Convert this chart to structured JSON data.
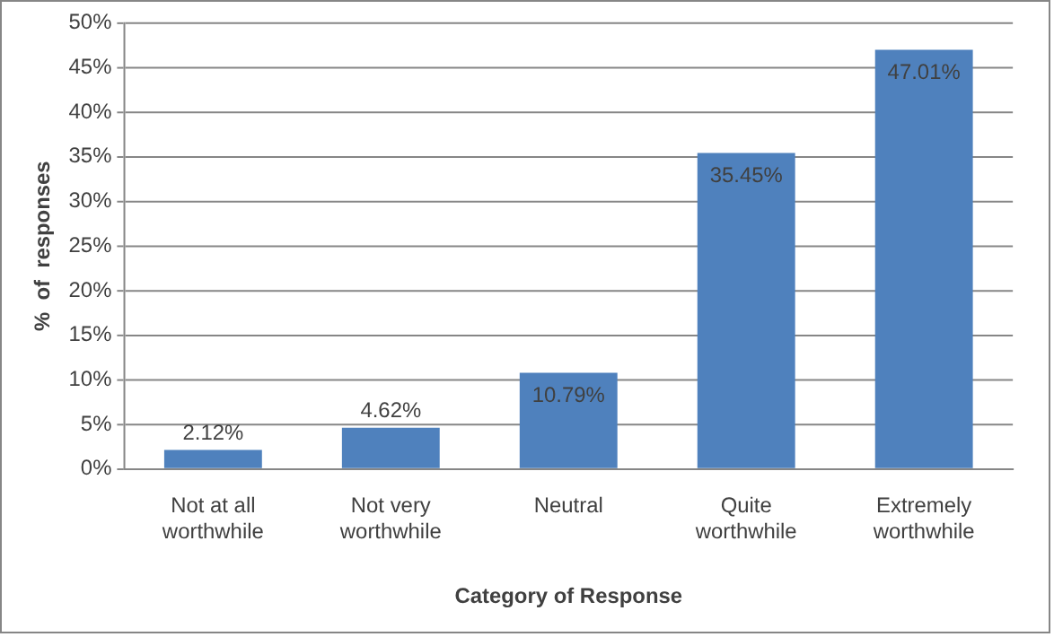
{
  "chart_data": {
    "type": "bar",
    "xlabel": "Category of Response",
    "ylabel": "%  of  responses",
    "categories": [
      "Not at all worthwhile",
      "Not very worthwhile",
      "Neutral",
      "Quite worthwhile",
      "Extremely worthwhile"
    ],
    "values": [
      2.12,
      4.62,
      10.79,
      35.45,
      47.01
    ],
    "value_labels": [
      "2.12%",
      "4.62%",
      "10.79%",
      "35.45%",
      "47.01%"
    ],
    "color": "#4f81bd",
    "ylim": [
      0,
      50
    ],
    "yticks": [
      {
        "value": 0,
        "label": "0%"
      },
      {
        "value": 5,
        "label": "5%"
      },
      {
        "value": 10,
        "label": "10%"
      },
      {
        "value": 15,
        "label": "15%"
      },
      {
        "value": 20,
        "label": "20%"
      },
      {
        "value": 25,
        "label": "25%"
      },
      {
        "value": 30,
        "label": "30%"
      },
      {
        "value": 35,
        "label": "35%"
      },
      {
        "value": 40,
        "label": "40%"
      },
      {
        "value": 45,
        "label": "45%"
      },
      {
        "value": 50,
        "label": "50%"
      }
    ],
    "grid": "y",
    "legend": false
  }
}
